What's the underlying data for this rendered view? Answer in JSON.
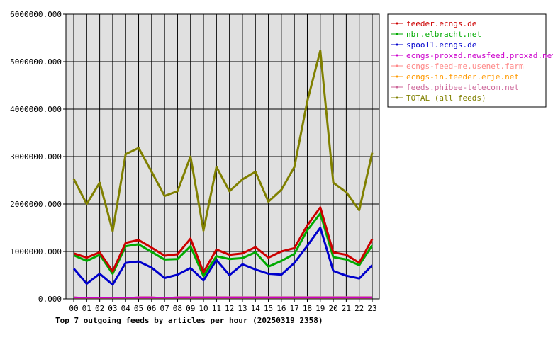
{
  "chart_data": {
    "type": "line",
    "title": "Top 7 outgoing feeds by articles per hour (20250319 2358)",
    "xlabel": "",
    "ylabel": "",
    "ylim": [
      0,
      6000000
    ],
    "y_ticks": [
      "0.000",
      "1000000.000",
      "2000000.000",
      "3000000.000",
      "4000000.000",
      "5000000.000",
      "6000000.000"
    ],
    "y_tick_values": [
      0,
      1000000,
      2000000,
      3000000,
      4000000,
      5000000,
      6000000
    ],
    "categories": [
      "00",
      "01",
      "02",
      "03",
      "04",
      "05",
      "06",
      "07",
      "08",
      "09",
      "10",
      "11",
      "12",
      "13",
      "14",
      "15",
      "16",
      "17",
      "18",
      "19",
      "20",
      "21",
      "22",
      "23"
    ],
    "grid": true,
    "legend_position": "right",
    "series": [
      {
        "name": "feeder.ecngs.de",
        "color": "#cc0000",
        "values": [
          960000,
          870000,
          980000,
          580000,
          1180000,
          1240000,
          1080000,
          910000,
          940000,
          1270000,
          560000,
          1040000,
          930000,
          960000,
          1090000,
          870000,
          1000000,
          1070000,
          1550000,
          1930000,
          980000,
          930000,
          760000,
          1260000
        ]
      },
      {
        "name": "nbr.elbracht.net",
        "color": "#00aa00",
        "values": [
          920000,
          800000,
          930000,
          530000,
          1110000,
          1150000,
          990000,
          830000,
          840000,
          1110000,
          480000,
          900000,
          840000,
          860000,
          980000,
          680000,
          800000,
          950000,
          1450000,
          1800000,
          880000,
          830000,
          710000,
          1130000
        ]
      },
      {
        "name": "spool1.ecngs.de",
        "color": "#0000cc",
        "values": [
          640000,
          320000,
          530000,
          300000,
          760000,
          790000,
          660000,
          440000,
          510000,
          650000,
          390000,
          820000,
          500000,
          730000,
          620000,
          530000,
          510000,
          760000,
          1120000,
          1500000,
          590000,
          490000,
          430000,
          710000
        ]
      },
      {
        "name": "ecngs-proxad.newsfeed.proxad.net",
        "color": "#cc00cc",
        "values": [
          30000,
          30000,
          30000,
          30000,
          30000,
          30000,
          30000,
          30000,
          30000,
          30000,
          30000,
          30000,
          30000,
          30000,
          30000,
          30000,
          30000,
          30000,
          30000,
          30000,
          30000,
          30000,
          30000,
          30000
        ]
      },
      {
        "name": "ecngs-feed-me.usenet.farm",
        "color": "#ff8888",
        "values": [
          20000,
          20000,
          20000,
          20000,
          20000,
          20000,
          20000,
          20000,
          20000,
          20000,
          20000,
          20000,
          20000,
          20000,
          20000,
          20000,
          20000,
          20000,
          20000,
          20000,
          20000,
          20000,
          20000,
          20000
        ]
      },
      {
        "name": "ecngs-in.feeder.erje.net",
        "color": "#ff9900",
        "values": [
          15000,
          15000,
          15000,
          15000,
          15000,
          15000,
          15000,
          15000,
          15000,
          15000,
          15000,
          15000,
          15000,
          15000,
          15000,
          15000,
          15000,
          15000,
          15000,
          15000,
          15000,
          15000,
          15000,
          15000
        ]
      },
      {
        "name": "feeds.phibee-telecom.net",
        "color": "#cc6699",
        "values": [
          40000,
          10000,
          10000,
          10000,
          10000,
          40000,
          40000,
          10000,
          40000,
          40000,
          40000,
          40000,
          40000,
          40000,
          40000,
          40000,
          40000,
          40000,
          40000,
          40000,
          40000,
          40000,
          40000,
          40000
        ]
      },
      {
        "name": "TOTAL (all feeds)",
        "color": "#808000",
        "values": [
          2530000,
          2000000,
          2450000,
          1430000,
          3050000,
          3180000,
          2680000,
          2170000,
          2270000,
          3000000,
          1440000,
          2780000,
          2270000,
          2520000,
          2680000,
          2050000,
          2300000,
          2780000,
          4170000,
          5230000,
          2450000,
          2250000,
          1870000,
          3080000
        ]
      }
    ]
  }
}
